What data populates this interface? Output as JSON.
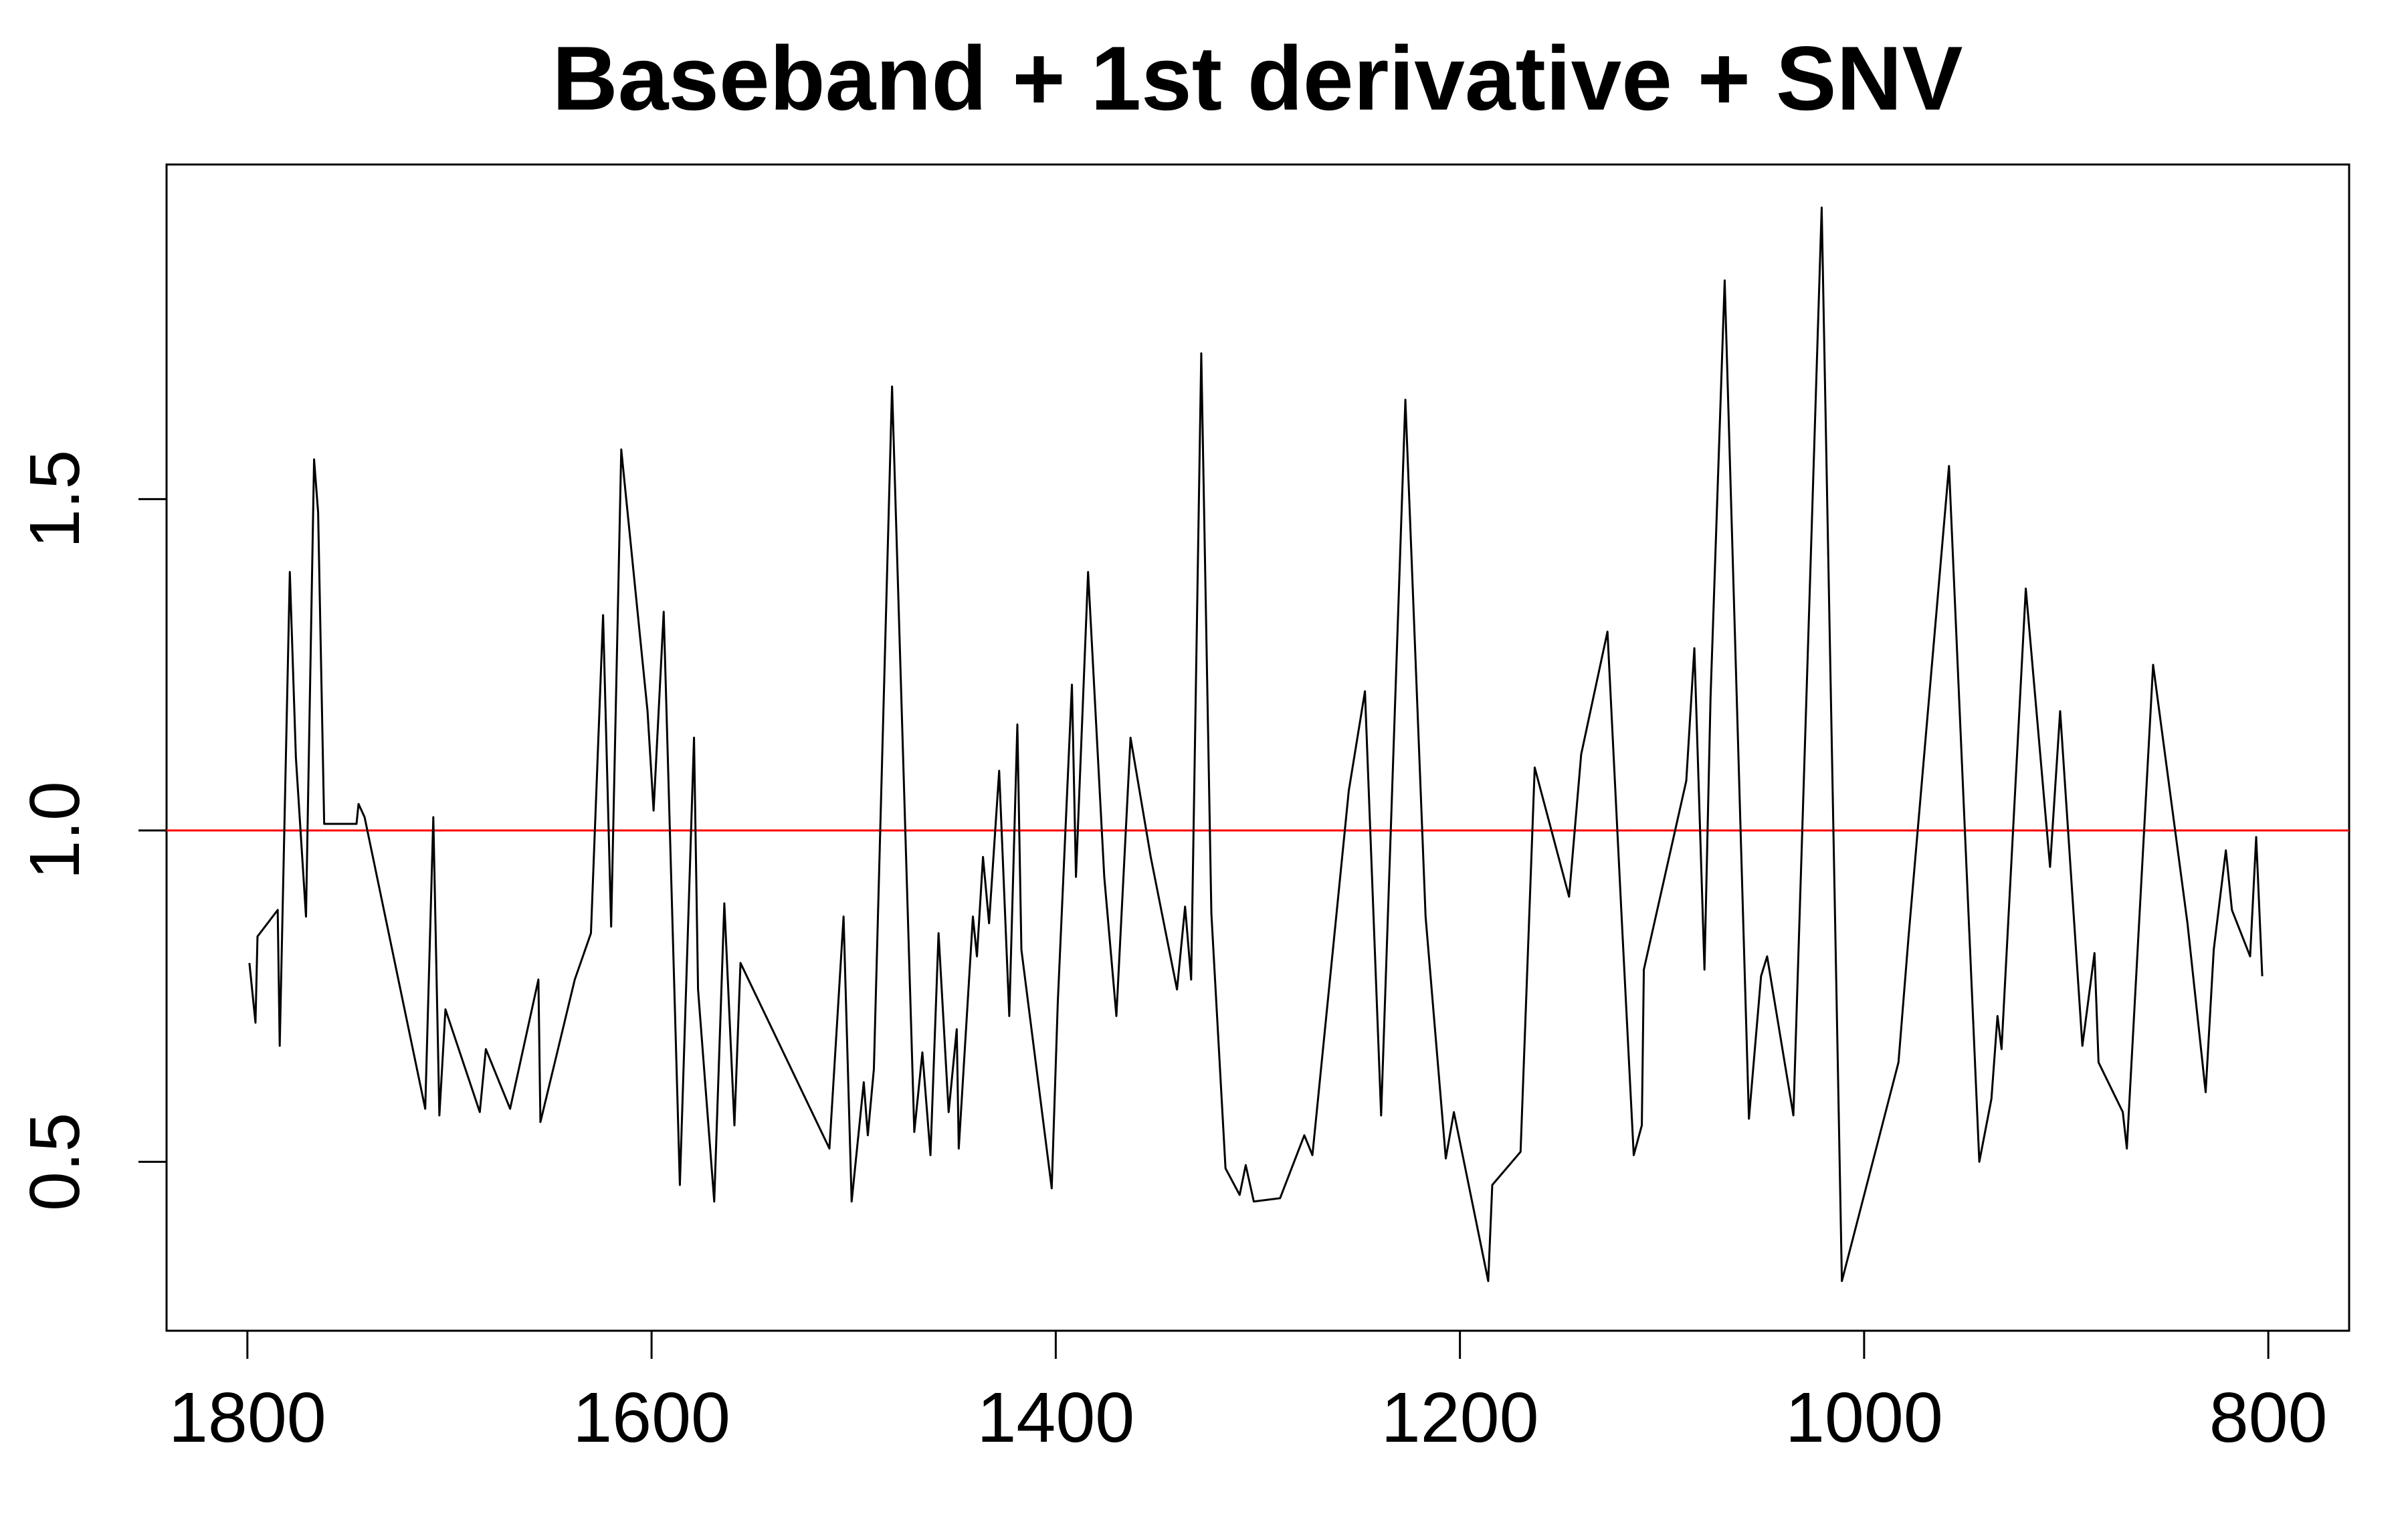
{
  "chart_data": {
    "type": "line",
    "title": "Baseband + 1st derivative + SNV",
    "x": [
      1799,
      1796,
      1795,
      1785,
      1784,
      1779,
      1776,
      1771,
      1767,
      1765,
      1762,
      1746,
      1745,
      1742,
      1712,
      1708,
      1705,
      1702,
      1685,
      1682,
      1670,
      1656,
      1655,
      1638,
      1630,
      1624,
      1620,
      1615,
      1602,
      1599,
      1594,
      1586,
      1579,
      1577,
      1569,
      1564,
      1559,
      1556,
      1512,
      1505,
      1501,
      1495,
      1493,
      1490,
      1481,
      1470,
      1466,
      1462,
      1458,
      1453,
      1449,
      1448,
      1441,
      1439,
      1436,
      1433,
      1428,
      1423,
      1419,
      1417,
      1402,
      1399,
      1392,
      1390,
      1384,
      1376,
      1370,
      1363,
      1353,
      1340,
      1336,
      1333,
      1328,
      1323,
      1316,
      1309,
      1306,
      1302,
      1289,
      1277,
      1273,
      1255,
      1247,
      1239,
      1227,
      1217,
      1207,
      1203,
      1186,
      1184,
      1170,
      1163,
      1146,
      1140,
      1127,
      1120,
      1114,
      1110,
      1109,
      1088,
      1084,
      1079,
      1076,
      1069,
      1057,
      1051,
      1048,
      1035,
      1021,
      1011,
      983,
      978,
      958,
      943,
      937,
      934,
      932,
      920,
      908,
      903,
      892,
      886,
      884,
      872,
      870,
      857,
      840,
      831,
      827,
      821,
      818,
      809,
      806,
      803
    ],
    "series": [
      {
        "color": "#000000",
        "values": [
          0.8,
          0.71,
          0.84,
          0.88,
          0.675,
          1.39,
          1.11,
          0.87,
          1.56,
          1.48,
          1.01,
          1.01,
          1.04,
          1.02,
          0.58,
          1.02,
          0.57,
          0.73,
          0.575,
          0.67,
          0.58,
          0.775,
          0.56,
          0.775,
          0.845,
          1.325,
          0.855,
          1.575,
          1.18,
          1.03,
          1.33,
          0.465,
          1.14,
          0.76,
          0.44,
          0.89,
          0.555,
          0.8,
          0.52,
          0.87,
          0.44,
          0.62,
          0.54,
          0.64,
          1.67,
          0.545,
          0.665,
          0.51,
          0.845,
          0.575,
          0.7,
          0.52,
          0.87,
          0.81,
          0.96,
          0.86,
          1.09,
          0.72,
          1.16,
          0.82,
          0.46,
          0.74,
          1.22,
          0.93,
          1.39,
          0.93,
          0.72,
          1.14,
          0.96,
          0.76,
          0.885,
          0.775,
          1.72,
          0.875,
          0.49,
          0.45,
          0.495,
          0.44,
          0.445,
          0.54,
          0.51,
          1.06,
          1.21,
          0.57,
          1.65,
          0.87,
          0.505,
          0.575,
          0.32,
          0.465,
          0.515,
          1.095,
          0.9,
          1.115,
          1.3,
          0.87,
          0.51,
          0.555,
          0.79,
          1.075,
          1.275,
          0.79,
          1.2,
          1.83,
          0.565,
          0.78,
          0.81,
          0.57,
          1.94,
          0.32,
          0.65,
          0.84,
          1.55,
          0.5,
          0.595,
          0.72,
          0.67,
          1.365,
          0.945,
          1.18,
          0.675,
          0.815,
          0.65,
          0.575,
          0.52,
          1.25,
          0.86,
          0.605,
          0.82,
          0.97,
          0.88,
          0.81,
          0.99,
          0.78
        ]
      }
    ],
    "hline": 1,
    "hline_color": "#ff0000",
    "xlim": [
      1840,
      760
    ],
    "ylim": [
      0.245,
      2.005
    ],
    "xticks": [
      1800,
      1600,
      1400,
      1200,
      1000,
      800
    ],
    "yticks": [
      0.5,
      {
        "value": 1,
        "label": "1.0"
      },
      1.5
    ],
    "grid": false
  }
}
